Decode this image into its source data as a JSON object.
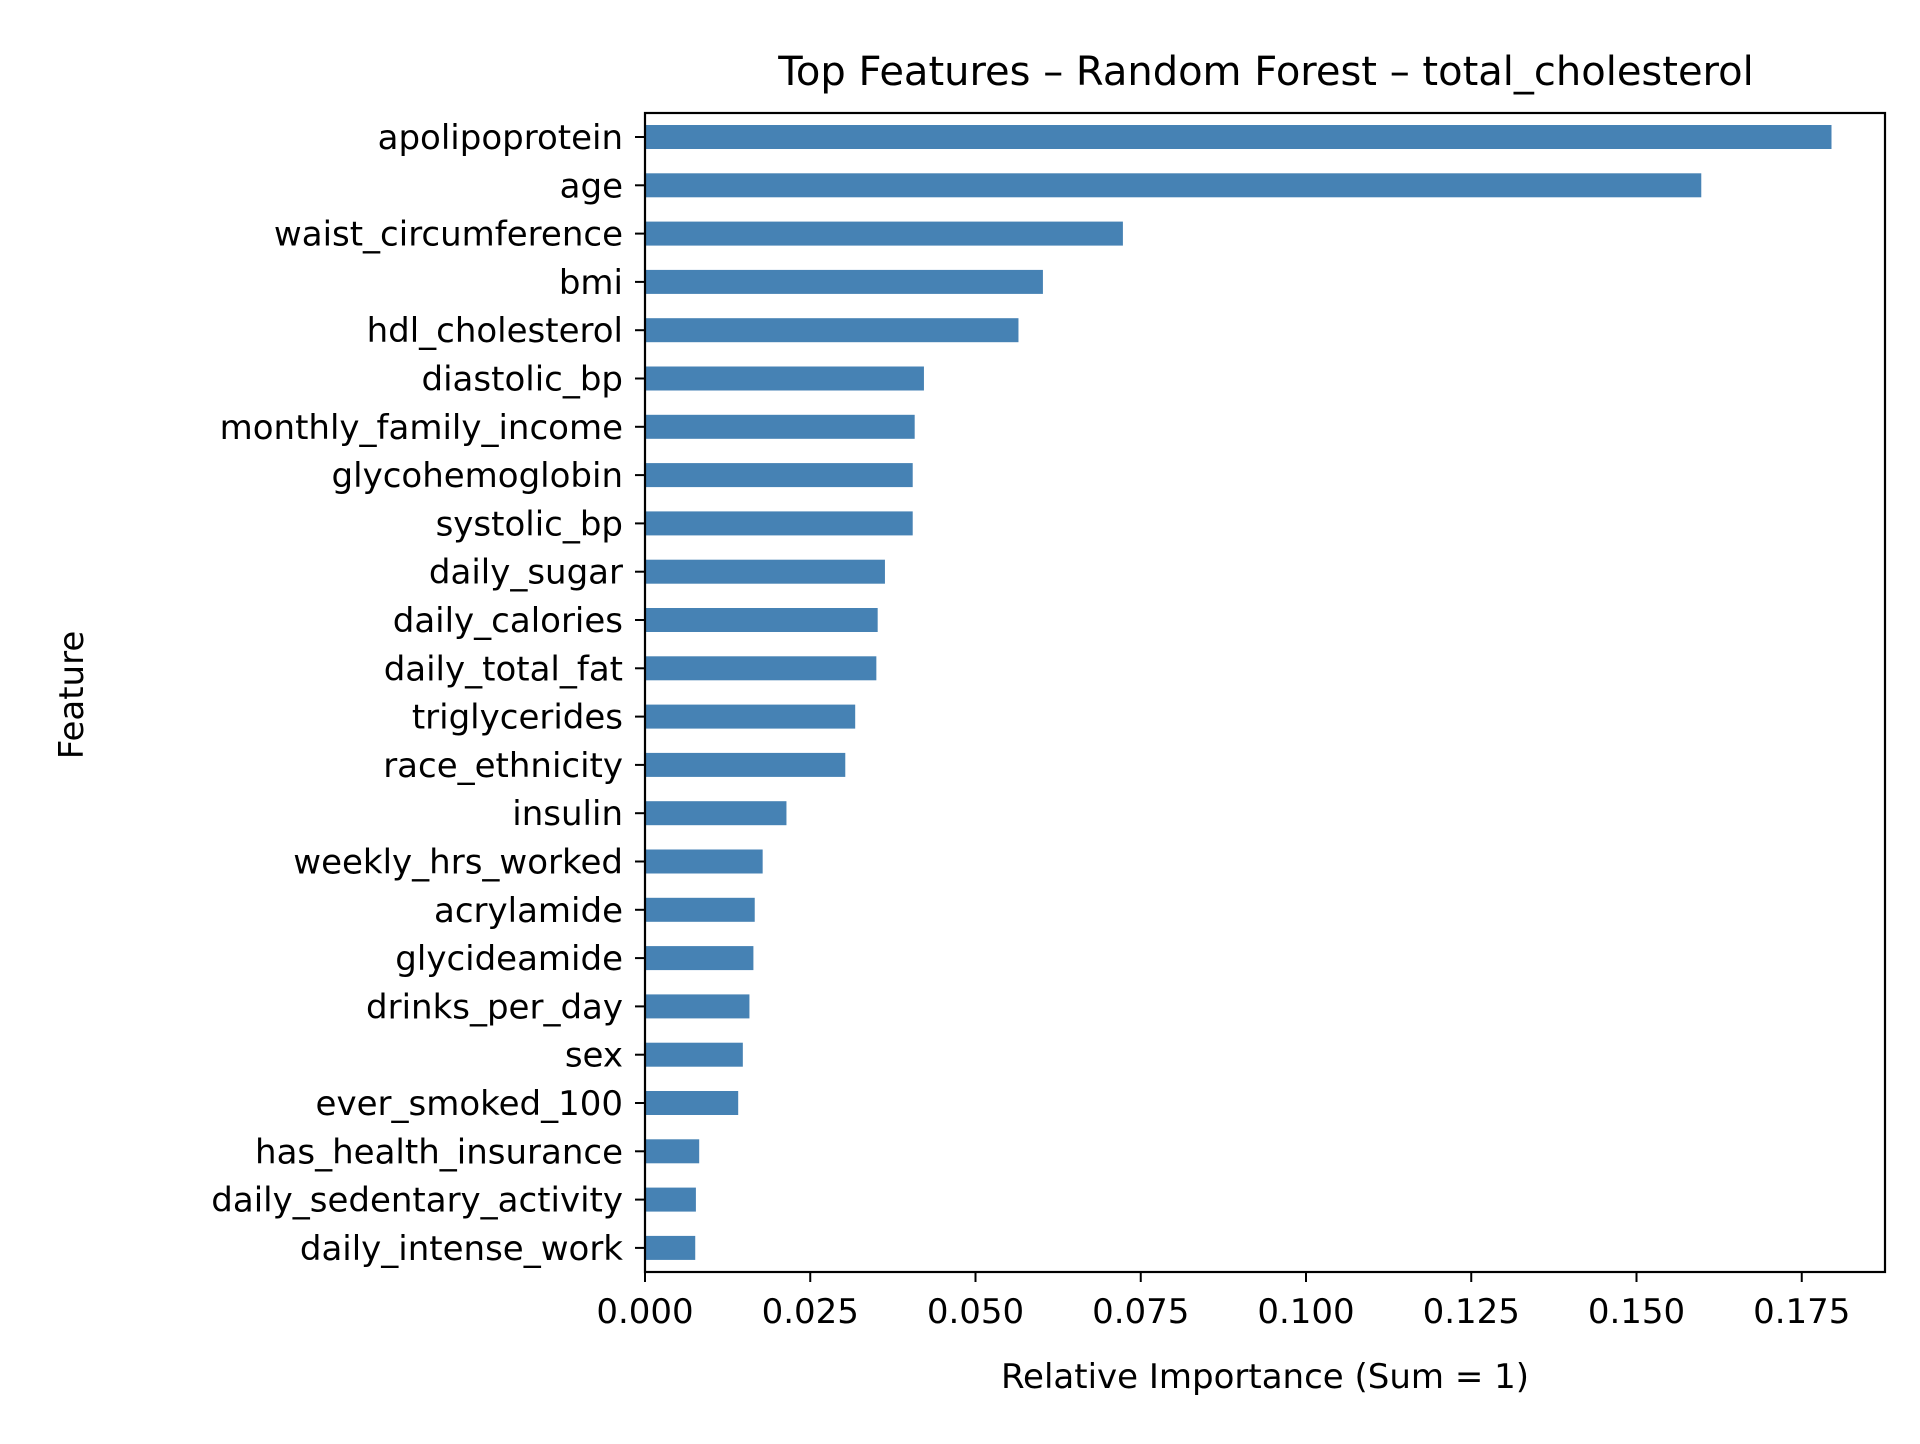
{
  "chart_data": {
    "type": "bar",
    "orientation": "horizontal",
    "title": "Top Features – Random Forest – total_cholesterol",
    "xlabel": "Relative Importance (Sum = 1)",
    "ylabel": "Feature",
    "categories": [
      "apolipoprotein",
      "age",
      "waist_circumference",
      "bmi",
      "hdl_cholesterol",
      "diastolic_bp",
      "monthly_family_income",
      "glycohemoglobin",
      "systolic_bp",
      "daily_sugar",
      "daily_calories",
      "daily_total_fat",
      "triglycerides",
      "race_ethnicity",
      "insulin",
      "weekly_hrs_worked",
      "acrylamide",
      "glycideamide",
      "drinks_per_day",
      "sex",
      "ever_smoked_100",
      "has_health_insurance",
      "daily_sedentary_activity",
      "daily_intense_work"
    ],
    "values": [
      0.1795,
      0.1598,
      0.0723,
      0.0602,
      0.0565,
      0.0422,
      0.0408,
      0.0405,
      0.0405,
      0.0363,
      0.0352,
      0.035,
      0.0318,
      0.0303,
      0.0214,
      0.0178,
      0.0166,
      0.0164,
      0.0158,
      0.0148,
      0.0141,
      0.0082,
      0.0077,
      0.0076
    ],
    "xticks": [
      "0.000",
      "0.025",
      "0.050",
      "0.075",
      "0.100",
      "0.125",
      "0.150",
      "0.175"
    ],
    "xlim": [
      0,
      0.188
    ],
    "bar_color": "#4682b4",
    "grid": false,
    "legend": "none"
  }
}
